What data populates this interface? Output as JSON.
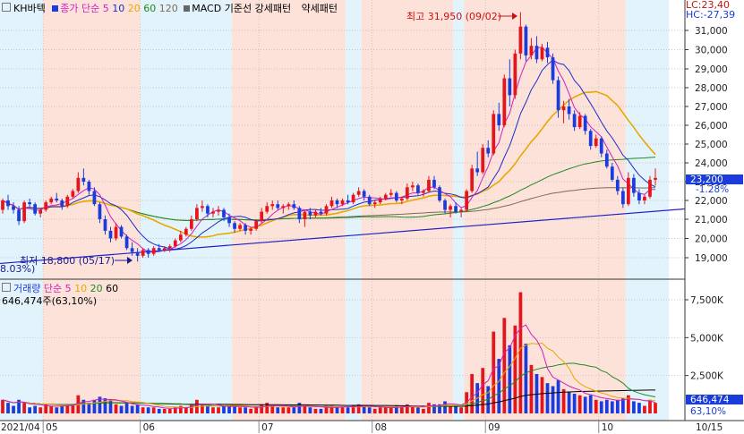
{
  "header": {
    "code": "KH바텍",
    "close_label": "종가",
    "ma_label": "단순",
    "ma_periods": [
      "5",
      "10",
      "20",
      "60",
      "120"
    ],
    "macd_label": "MACD 기준선",
    "strong_label": "강세패턴",
    "weak_label": "약세패턴",
    "lc_readout": "LC:23,40",
    "hc_readout": "HC:-27,39"
  },
  "volume_header": {
    "label": "거래량",
    "ma_label": "단순",
    "ma_periods": [
      "5",
      "10",
      "20",
      "60"
    ],
    "current": "646,474주(63,10%)"
  },
  "colors": {
    "up": "#e8141c",
    "down": "#1a3cdc",
    "ma5": "#d020c0",
    "ma10": "#1a2ccc",
    "ma20": "#e8a800",
    "ma60": "#1f8a1f",
    "ma120": "#7a6a5a",
    "trend": "#2020c8",
    "band_red": "#fde2da",
    "band_blue": "#e3f3fb"
  },
  "annotations": {
    "high": "최고 31,950 (09/02)",
    "low": "최저 18,800 (05/17)",
    "low_pct": "8.03%)"
  },
  "chart_data": {
    "type": "candlestick",
    "price_axis": {
      "ticks": [
        "31,000",
        "30,000",
        "29,000",
        "28,000",
        "27,000",
        "26,000",
        "25,000",
        "24,000",
        "23,000",
        "22,000",
        "21,000",
        "20,000",
        "19,000"
      ],
      "range": [
        18200,
        31950
      ]
    },
    "volume_axis": {
      "ticks": [
        "7,500K",
        "5,000K",
        "2,500K"
      ],
      "range": [
        0,
        8500
      ]
    },
    "x_labels": [
      "2021/04",
      "05",
      "06",
      "07",
      "08",
      "09",
      "10",
      "10/15"
    ],
    "current_price": {
      "value": "23,200",
      "change": "-1.28%"
    },
    "current_volume": {
      "value": "646,474",
      "ratio": "63,10%"
    },
    "candles": [
      [
        21500,
        22100,
        21300,
        22000,
        900
      ],
      [
        22000,
        22300,
        21500,
        21700,
        700
      ],
      [
        21700,
        21900,
        21300,
        21500,
        500
      ],
      [
        21500,
        21700,
        20700,
        20900,
        900
      ],
      [
        20900,
        22000,
        20800,
        21900,
        700
      ],
      [
        21900,
        22100,
        21600,
        21800,
        400
      ],
      [
        21800,
        21900,
        21200,
        21300,
        500
      ],
      [
        21300,
        21600,
        21100,
        21500,
        400
      ],
      [
        21500,
        22000,
        21400,
        21900,
        600
      ],
      [
        21900,
        22200,
        21800,
        22100,
        500
      ],
      [
        22100,
        22400,
        21900,
        22000,
        400
      ],
      [
        22000,
        22100,
        21500,
        21700,
        500
      ],
      [
        21700,
        22300,
        21600,
        22200,
        600
      ],
      [
        22200,
        22600,
        22100,
        22500,
        600
      ],
      [
        22500,
        23500,
        22400,
        23200,
        1200
      ],
      [
        23200,
        23700,
        22800,
        23000,
        900
      ],
      [
        23000,
        23100,
        22300,
        22500,
        700
      ],
      [
        22500,
        22700,
        21700,
        21800,
        900
      ],
      [
        21800,
        21900,
        20800,
        21000,
        1100
      ],
      [
        21000,
        21200,
        20200,
        20400,
        1000
      ],
      [
        20400,
        20600,
        19800,
        20000,
        900
      ],
      [
        20000,
        20800,
        19900,
        20600,
        600
      ],
      [
        20600,
        20700,
        20000,
        20100,
        500
      ],
      [
        20100,
        20200,
        19400,
        19500,
        700
      ],
      [
        19500,
        19800,
        19100,
        19300,
        500
      ],
      [
        19300,
        19500,
        18800,
        19100,
        600
      ],
      [
        19100,
        19500,
        19000,
        19400,
        400
      ],
      [
        19400,
        19500,
        19000,
        19200,
        400
      ],
      [
        19200,
        19600,
        19100,
        19500,
        400
      ],
      [
        19500,
        19700,
        19300,
        19400,
        300
      ],
      [
        19400,
        19600,
        19300,
        19500,
        300
      ],
      [
        19500,
        19700,
        19300,
        19600,
        300
      ],
      [
        19600,
        20000,
        19500,
        19900,
        400
      ],
      [
        19900,
        20400,
        19800,
        20200,
        500
      ],
      [
        20200,
        20600,
        20100,
        20500,
        400
      ],
      [
        20500,
        21200,
        20400,
        21000,
        600
      ],
      [
        21000,
        21800,
        20900,
        21600,
        900
      ],
      [
        21600,
        22000,
        21400,
        21700,
        600
      ],
      [
        21700,
        21800,
        21100,
        21300,
        500
      ],
      [
        21300,
        21600,
        21100,
        21400,
        400
      ],
      [
        21400,
        21700,
        21200,
        21500,
        400
      ],
      [
        21500,
        21600,
        20900,
        21100,
        500
      ],
      [
        21100,
        21300,
        20600,
        20800,
        500
      ],
      [
        20800,
        20900,
        20300,
        20500,
        500
      ],
      [
        20500,
        20800,
        20400,
        20700,
        400
      ],
      [
        20700,
        20800,
        20200,
        20400,
        400
      ],
      [
        20400,
        20600,
        20200,
        20500,
        300
      ],
      [
        20500,
        21000,
        20400,
        20900,
        400
      ],
      [
        20900,
        21600,
        20800,
        21400,
        600
      ],
      [
        21400,
        21900,
        21300,
        21700,
        700
      ],
      [
        21700,
        22000,
        21500,
        21800,
        500
      ],
      [
        21800,
        22000,
        21500,
        21600,
        400
      ],
      [
        21600,
        21800,
        21300,
        21700,
        400
      ],
      [
        21700,
        21900,
        21500,
        21800,
        400
      ],
      [
        21800,
        22000,
        21500,
        21600,
        400
      ],
      [
        21600,
        21700,
        20800,
        21000,
        700
      ],
      [
        21000,
        21500,
        20600,
        21400,
        500
      ],
      [
        21400,
        21600,
        21000,
        21200,
        400
      ],
      [
        21200,
        21500,
        21100,
        21400,
        300
      ],
      [
        21400,
        21600,
        21200,
        21300,
        300
      ],
      [
        21300,
        21800,
        21200,
        21700,
        500
      ],
      [
        21700,
        22200,
        21600,
        22000,
        500
      ],
      [
        22000,
        22100,
        21600,
        21800,
        400
      ],
      [
        21800,
        22100,
        21700,
        22000,
        400
      ],
      [
        22000,
        22300,
        21800,
        21900,
        400
      ],
      [
        21900,
        22400,
        21800,
        22300,
        500
      ],
      [
        22300,
        22700,
        22200,
        22500,
        600
      ],
      [
        22500,
        22600,
        22000,
        22200,
        500
      ],
      [
        22200,
        22300,
        21700,
        21800,
        400
      ],
      [
        21800,
        22000,
        21600,
        21900,
        300
      ],
      [
        21900,
        22200,
        21800,
        22100,
        400
      ],
      [
        22100,
        22400,
        22000,
        22300,
        400
      ],
      [
        22300,
        22600,
        22200,
        22400,
        400
      ],
      [
        22400,
        22500,
        21900,
        22000,
        500
      ],
      [
        22000,
        22200,
        21800,
        22100,
        400
      ],
      [
        22100,
        22900,
        22000,
        22700,
        600
      ],
      [
        22700,
        23000,
        22500,
        22800,
        500
      ],
      [
        22800,
        22900,
        22300,
        22400,
        400
      ],
      [
        22400,
        22600,
        22200,
        22500,
        300
      ],
      [
        22500,
        23300,
        22400,
        23100,
        700
      ],
      [
        23100,
        23300,
        22600,
        22700,
        600
      ],
      [
        22700,
        22800,
        21900,
        22000,
        600
      ],
      [
        22000,
        22100,
        21300,
        21500,
        800
      ],
      [
        21500,
        21800,
        21100,
        21700,
        500
      ],
      [
        21700,
        21900,
        21300,
        21400,
        500
      ],
      [
        21400,
        21600,
        21100,
        21500,
        400
      ],
      [
        21500,
        22600,
        21400,
        22500,
        1400
      ],
      [
        22500,
        23900,
        22400,
        23700,
        2600
      ],
      [
        23700,
        24600,
        23300,
        23500,
        2000
      ],
      [
        23500,
        25000,
        23400,
        24800,
        3000
      ],
      [
        24800,
        25200,
        24300,
        24500,
        1800
      ],
      [
        24500,
        26800,
        24400,
        26600,
        5400
      ],
      [
        26600,
        27200,
        25700,
        26000,
        3600
      ],
      [
        26000,
        28700,
        25900,
        28500,
        6300
      ],
      [
        28500,
        29500,
        27000,
        27600,
        4500
      ],
      [
        27600,
        30000,
        27400,
        29800,
        5800
      ],
      [
        29800,
        31950,
        29500,
        31200,
        8000
      ],
      [
        31200,
        31300,
        29400,
        29700,
        4600
      ],
      [
        29700,
        30600,
        29500,
        30200,
        3200
      ],
      [
        30200,
        30700,
        29300,
        29500,
        2600
      ],
      [
        29500,
        30300,
        29400,
        30100,
        2400
      ],
      [
        30100,
        30400,
        29300,
        29600,
        2000
      ],
      [
        29600,
        29800,
        28200,
        28400,
        1800
      ],
      [
        28400,
        28600,
        26400,
        26800,
        2200
      ],
      [
        26800,
        27300,
        26100,
        27000,
        1600
      ],
      [
        27000,
        27400,
        26300,
        26600,
        1400
      ],
      [
        26600,
        26800,
        25700,
        25900,
        1300
      ],
      [
        25900,
        26700,
        25800,
        26500,
        1200
      ],
      [
        26500,
        26600,
        25500,
        25700,
        1100
      ],
      [
        25700,
        25800,
        24700,
        24900,
        1200
      ],
      [
        24900,
        25500,
        24800,
        25300,
        900
      ],
      [
        25300,
        25400,
        24300,
        24500,
        800
      ],
      [
        24500,
        24700,
        23700,
        23800,
        900
      ],
      [
        23800,
        24000,
        23000,
        23100,
        800
      ],
      [
        23100,
        23300,
        22300,
        22500,
        900
      ],
      [
        22500,
        22700,
        21600,
        21800,
        1000
      ],
      [
        21800,
        23500,
        21700,
        23200,
        1200
      ],
      [
        23200,
        23400,
        22200,
        22400,
        800
      ],
      [
        22400,
        22600,
        21800,
        22000,
        700
      ],
      [
        22000,
        22300,
        21800,
        22200,
        500
      ],
      [
        22200,
        23300,
        22100,
        23100,
        900
      ],
      [
        23100,
        23700,
        22800,
        23200,
        700
      ]
    ]
  }
}
